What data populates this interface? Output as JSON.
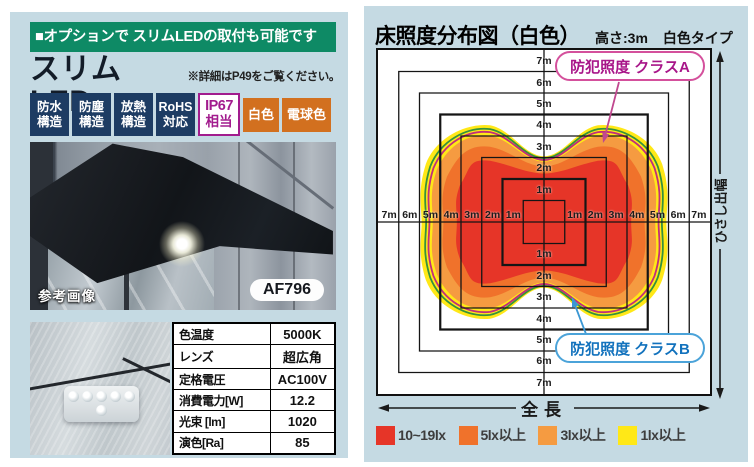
{
  "colors": {
    "panel_bg": "#c5dae3",
    "header_bg": "#0e8a65",
    "badge_navy": "#1d3c63",
    "badge_orange": "#d2701f",
    "badge_magenta": "#a21c8e",
    "class_a_color": "#a81689",
    "class_b_color": "#1272bd"
  },
  "left": {
    "header": {
      "text": "■オプションで スリムLEDの取付も可能です"
    },
    "title": "スリムLED",
    "note": "※詳細はP49をご覧ください。",
    "badges": [
      {
        "type": "navy",
        "lines": [
          "防水",
          "構造"
        ]
      },
      {
        "type": "navy",
        "lines": [
          "防塵",
          "構造"
        ]
      },
      {
        "type": "navy",
        "lines": [
          "放熱",
          "構造"
        ]
      },
      {
        "type": "navy",
        "lines": [
          "RoHS",
          "対応"
        ]
      },
      {
        "type": "outline",
        "lines": [
          "IP67",
          "相当"
        ]
      },
      {
        "type": "orange",
        "lines": [
          "白色"
        ]
      },
      {
        "type": "orange",
        "lines": [
          "電球色"
        ]
      }
    ],
    "photo": {
      "caption": "参考画像",
      "model": "AF796"
    },
    "spec": {
      "rows": [
        {
          "label": "色温度",
          "value": "5000K"
        },
        {
          "label": "レンズ",
          "value": "超広角"
        },
        {
          "label": "定格電圧",
          "value": "AC100V"
        },
        {
          "label": "消費電力[W]",
          "value": "12.2"
        },
        {
          "label": "光束 [lm]",
          "value": "1020"
        },
        {
          "label": "演色[Ra]",
          "value": "85"
        }
      ]
    }
  },
  "right": {
    "title": "床照度分布図（白色）",
    "height_note": "高さ:3m",
    "type_note": "白色タイプ",
    "class_a": "防犯照度 クラスA",
    "class_b": "防犯照度 クラスB",
    "total_length": "全長",
    "eave_depth": "ひさし出幅",
    "legend": [
      {
        "label": "10~19lx",
        "color": "#e63528"
      },
      {
        "label": "5lx以上",
        "color": "#f0722b"
      },
      {
        "label": "3lx以上",
        "color": "#f59b41"
      },
      {
        "label": "1lx以上",
        "color": "#ffe817"
      }
    ],
    "chart_data": {
      "type": "heatmap",
      "title": "床照度分布図（白色）",
      "conditions": [
        "高さ:3m",
        "白色タイプ"
      ],
      "axis_unit": "m",
      "x_range_m": [
        -8,
        8
      ],
      "y_range_m": [
        -8,
        8
      ],
      "grid_squares_m": [
        1,
        2,
        3,
        4,
        5,
        6,
        7
      ],
      "bold_squares_m": [
        2,
        5
      ],
      "tick_labels": [
        "1m",
        "2m",
        "3m",
        "4m",
        "5m",
        "6m",
        "7m"
      ],
      "legend_position": "bottom",
      "contour_levels": [
        {
          "label": "1lx以上",
          "kind": "fill",
          "color": "#ffe817",
          "half_width_m": 5.9,
          "lobe_half_height_m": 4.5,
          "center_half_height_m": 3.05
        },
        {
          "label": "防犯照度 クラスB",
          "kind": "line",
          "color": "#35923c",
          "half_width_m": 5.68,
          "lobe_half_height_m": 4.32,
          "center_half_height_m": 2.96
        },
        {
          "label": "防犯照度 クラスA",
          "kind": "line",
          "color": "#c12e7c",
          "half_width_m": 5.52,
          "lobe_half_height_m": 4.18,
          "center_half_height_m": 2.88
        },
        {
          "label": "3lx以上",
          "kind": "fill",
          "color": "#f59b41",
          "half_width_m": 5.36,
          "lobe_half_height_m": 4.02,
          "center_half_height_m": 2.8
        },
        {
          "label": "5lx以上",
          "kind": "fill",
          "color": "#f0722b",
          "half_width_m": 4.85,
          "lobe_half_height_m": 3.5,
          "center_half_height_m": 2.58
        },
        {
          "label": "10~19lx",
          "kind": "fill",
          "color": "#e63528",
          "half_width_m": 4.2,
          "lobe_half_height_m": 2.85,
          "center_half_height_m": 2.25
        }
      ]
    }
  }
}
